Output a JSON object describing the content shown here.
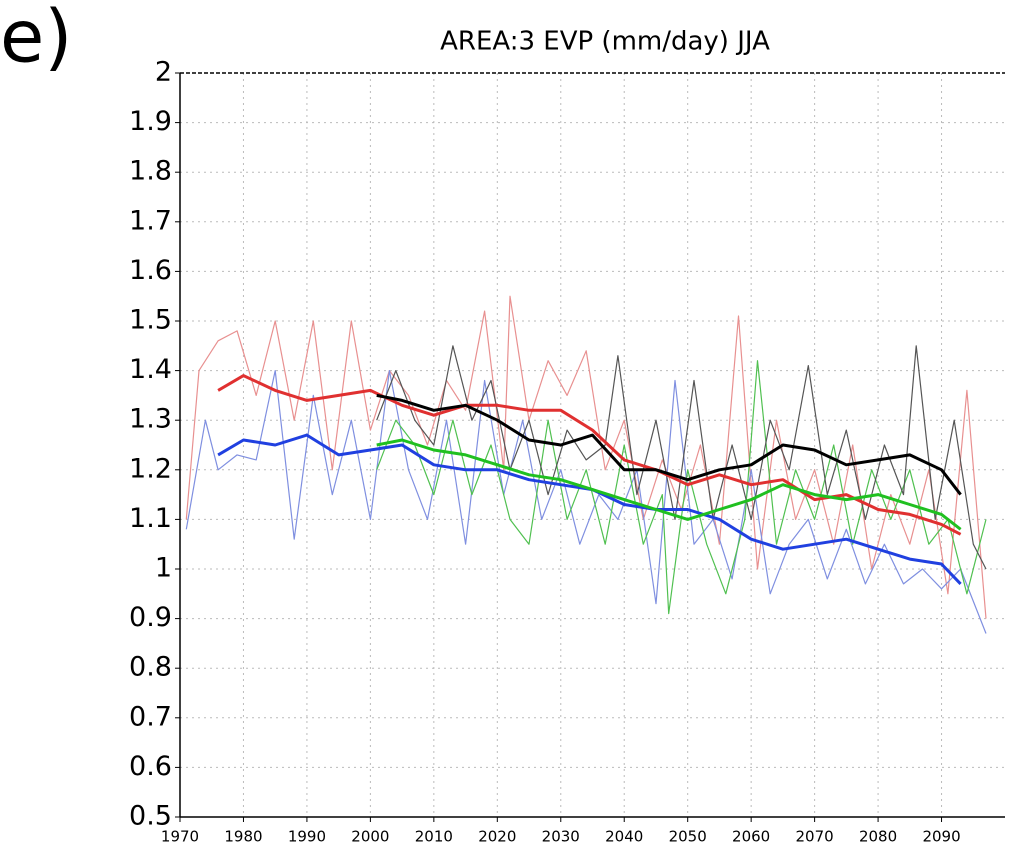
{
  "panel_label": "e)",
  "chart_data": {
    "type": "line",
    "title": "AREA:3 EVP (mm/day) JJA",
    "xlim": [
      1970,
      2100
    ],
    "xticks": [
      1970,
      1980,
      1990,
      2000,
      2010,
      2020,
      2030,
      2040,
      2050,
      2060,
      2070,
      2080,
      2090
    ],
    "ylim": [
      0.5,
      2
    ],
    "yticks": [
      0.5,
      0.6,
      0.7,
      0.8,
      0.9,
      1,
      1.1,
      1.2,
      1.3,
      1.4,
      1.5,
      1.6,
      1.7,
      1.8,
      1.9,
      2
    ],
    "grid": true,
    "series": [
      {
        "color": "#e89090",
        "width": 1.2,
        "x": [
          1971,
          1973,
          1976,
          1979,
          1982,
          1985,
          1988,
          1991,
          1994,
          1997,
          2000,
          2003,
          2006,
          2009,
          2012,
          2015,
          2018,
          2021,
          2022,
          2025,
          2028,
          2031,
          2034,
          2037,
          2040,
          2043,
          2046,
          2049,
          2052,
          2055,
          2058,
          2061,
          2064,
          2067,
          2070,
          2073,
          2076,
          2079,
          2082,
          2085,
          2088,
          2091,
          2094,
          2097
        ],
        "values": [
          1.1,
          1.4,
          1.46,
          1.48,
          1.35,
          1.5,
          1.3,
          1.5,
          1.2,
          1.5,
          1.28,
          1.4,
          1.35,
          1.25,
          1.38,
          1.32,
          1.52,
          1.2,
          1.55,
          1.3,
          1.42,
          1.35,
          1.44,
          1.2,
          1.3,
          1.1,
          1.22,
          1.12,
          1.25,
          1.05,
          1.51,
          1.0,
          1.3,
          1.1,
          1.2,
          1.05,
          1.25,
          1.0,
          1.15,
          1.05,
          1.2,
          0.95,
          1.36,
          0.9
        ]
      },
      {
        "color": "#7f8fe0",
        "width": 1.2,
        "x": [
          1971,
          1974,
          1976,
          1979,
          1982,
          1985,
          1988,
          1991,
          1994,
          1997,
          2000,
          2003,
          2006,
          2009,
          2012,
          2015,
          2018,
          2021,
          2024,
          2027,
          2030,
          2033,
          2036,
          2039,
          2042,
          2045,
          2048,
          2051,
          2054,
          2057,
          2060,
          2063,
          2066,
          2069,
          2072,
          2075,
          2078,
          2081,
          2084,
          2087,
          2090,
          2093,
          2097
        ],
        "values": [
          1.08,
          1.3,
          1.2,
          1.23,
          1.22,
          1.4,
          1.06,
          1.35,
          1.15,
          1.3,
          1.1,
          1.4,
          1.2,
          1.1,
          1.3,
          1.05,
          1.38,
          1.15,
          1.3,
          1.1,
          1.2,
          1.05,
          1.15,
          1.1,
          1.2,
          0.93,
          1.38,
          1.05,
          1.1,
          0.98,
          1.2,
          0.95,
          1.05,
          1.1,
          0.98,
          1.08,
          0.97,
          1.05,
          0.97,
          1.0,
          0.96,
          1.0,
          0.87
        ]
      },
      {
        "color": "#50c050",
        "width": 1.2,
        "x": [
          2001,
          2004,
          2007,
          2010,
          2013,
          2016,
          2019,
          2022,
          2025,
          2028,
          2031,
          2034,
          2037,
          2040,
          2043,
          2046,
          2047,
          2050,
          2053,
          2056,
          2059,
          2061,
          2064,
          2067,
          2070,
          2073,
          2076,
          2079,
          2082,
          2085,
          2088,
          2091,
          2094,
          2097
        ],
        "values": [
          1.2,
          1.3,
          1.25,
          1.15,
          1.3,
          1.15,
          1.25,
          1.1,
          1.05,
          1.3,
          1.1,
          1.2,
          1.05,
          1.25,
          1.05,
          1.15,
          0.91,
          1.2,
          1.05,
          0.95,
          1.1,
          1.42,
          1.05,
          1.2,
          1.1,
          1.25,
          1.05,
          1.2,
          1.1,
          1.2,
          1.05,
          1.1,
          0.95,
          1.1
        ]
      },
      {
        "color": "#555555",
        "width": 1.2,
        "x": [
          2001,
          2004,
          2007,
          2010,
          2013,
          2016,
          2019,
          2022,
          2025,
          2028,
          2031,
          2034,
          2037,
          2039,
          2042,
          2045,
          2048,
          2051,
          2054,
          2057,
          2060,
          2063,
          2066,
          2069,
          2072,
          2075,
          2078,
          2081,
          2084,
          2086,
          2089,
          2092,
          2095,
          2097
        ],
        "values": [
          1.3,
          1.4,
          1.3,
          1.25,
          1.45,
          1.3,
          1.38,
          1.2,
          1.3,
          1.15,
          1.28,
          1.22,
          1.25,
          1.43,
          1.15,
          1.3,
          1.1,
          1.38,
          1.1,
          1.25,
          1.1,
          1.3,
          1.2,
          1.41,
          1.15,
          1.28,
          1.1,
          1.25,
          1.15,
          1.45,
          1.1,
          1.3,
          1.05,
          1.0
        ]
      },
      {
        "color": "#e03030",
        "width": 3,
        "x": [
          1976,
          1980,
          1985,
          1990,
          1995,
          2000,
          2005,
          2010,
          2015,
          2020,
          2025,
          2030,
          2035,
          2040,
          2045,
          2050,
          2055,
          2060,
          2065,
          2070,
          2075,
          2080,
          2085,
          2090,
          2093
        ],
        "values": [
          1.36,
          1.39,
          1.36,
          1.34,
          1.35,
          1.36,
          1.33,
          1.31,
          1.33,
          1.33,
          1.32,
          1.32,
          1.28,
          1.22,
          1.2,
          1.17,
          1.19,
          1.17,
          1.18,
          1.14,
          1.15,
          1.12,
          1.11,
          1.09,
          1.07
        ]
      },
      {
        "color": "#2040e0",
        "width": 3,
        "x": [
          1976,
          1980,
          1985,
          1990,
          1995,
          2000,
          2005,
          2010,
          2015,
          2020,
          2025,
          2030,
          2035,
          2040,
          2045,
          2050,
          2055,
          2060,
          2065,
          2070,
          2075,
          2080,
          2085,
          2090,
          2093
        ],
        "values": [
          1.23,
          1.26,
          1.25,
          1.27,
          1.23,
          1.24,
          1.25,
          1.21,
          1.2,
          1.2,
          1.18,
          1.17,
          1.16,
          1.13,
          1.12,
          1.12,
          1.1,
          1.06,
          1.04,
          1.05,
          1.06,
          1.04,
          1.02,
          1.01,
          0.97
        ]
      },
      {
        "color": "#20c020",
        "width": 3,
        "x": [
          2001,
          2005,
          2010,
          2015,
          2020,
          2025,
          2030,
          2035,
          2040,
          2045,
          2050,
          2055,
          2060,
          2065,
          2070,
          2075,
          2080,
          2085,
          2090,
          2093
        ],
        "values": [
          1.25,
          1.26,
          1.24,
          1.23,
          1.21,
          1.19,
          1.18,
          1.16,
          1.14,
          1.12,
          1.1,
          1.12,
          1.14,
          1.17,
          1.15,
          1.14,
          1.15,
          1.13,
          1.11,
          1.08
        ]
      },
      {
        "color": "#000000",
        "width": 3,
        "x": [
          2001,
          2005,
          2010,
          2015,
          2020,
          2025,
          2030,
          2035,
          2040,
          2045,
          2050,
          2055,
          2060,
          2065,
          2070,
          2075,
          2080,
          2085,
          2090,
          2093
        ],
        "values": [
          1.35,
          1.34,
          1.32,
          1.33,
          1.3,
          1.26,
          1.25,
          1.27,
          1.2,
          1.2,
          1.18,
          1.2,
          1.21,
          1.25,
          1.24,
          1.21,
          1.22,
          1.23,
          1.2,
          1.15
        ]
      }
    ]
  }
}
